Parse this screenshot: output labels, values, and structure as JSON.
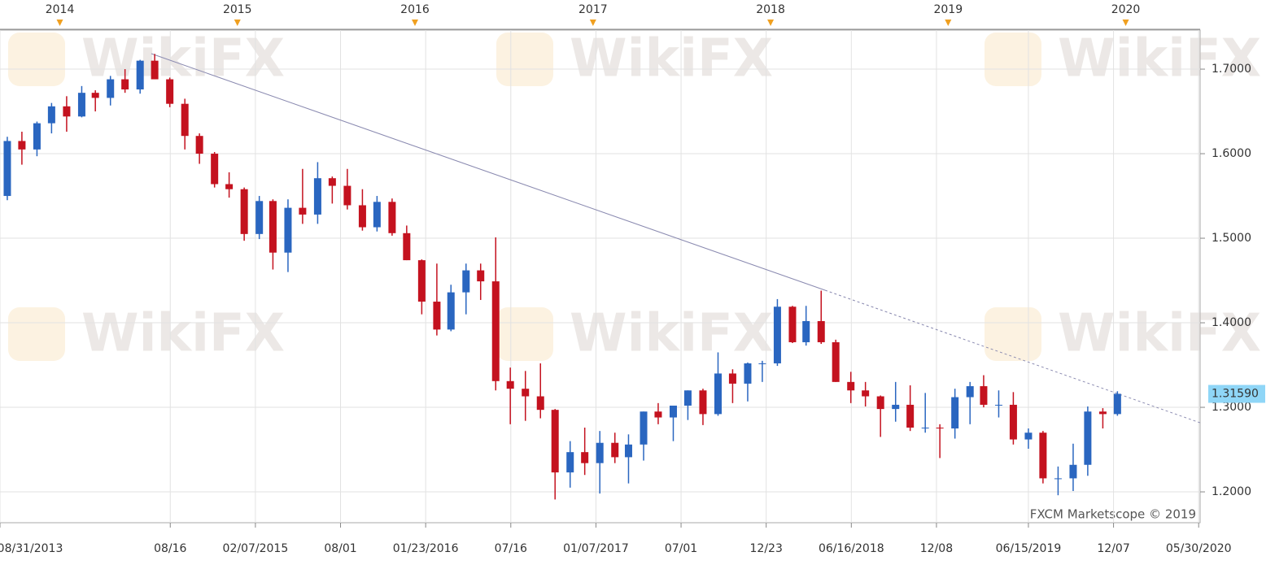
{
  "chart_data": {
    "type": "candlestick",
    "x": [
      "2013-09",
      "2013-10",
      "2013-11",
      "2013-12",
      "2014-01",
      "2014-02",
      "2014-03",
      "2014-04",
      "2014-05",
      "2014-06",
      "2014-07",
      "2014-08",
      "2014-09",
      "2014-10",
      "2014-11",
      "2014-12",
      "2015-01",
      "2015-02",
      "2015-03",
      "2015-04",
      "2015-05",
      "2015-06",
      "2015-07",
      "2015-08",
      "2015-09",
      "2015-10",
      "2015-11",
      "2015-12",
      "2016-01",
      "2016-02",
      "2016-03",
      "2016-04",
      "2016-05",
      "2016-06",
      "2016-07",
      "2016-08",
      "2016-09",
      "2016-10",
      "2016-11",
      "2016-12",
      "2017-01",
      "2017-02",
      "2017-03",
      "2017-04",
      "2017-05",
      "2017-06",
      "2017-07",
      "2017-08",
      "2017-09",
      "2017-10",
      "2017-11",
      "2017-12",
      "2018-01",
      "2018-02",
      "2018-03",
      "2018-04",
      "2018-05",
      "2018-06",
      "2018-07",
      "2018-08",
      "2018-09",
      "2018-10",
      "2018-11",
      "2018-12",
      "2019-01",
      "2019-02",
      "2019-03",
      "2019-04",
      "2019-05",
      "2019-06",
      "2019-07",
      "2019-08",
      "2019-09",
      "2019-10",
      "2019-11",
      "2019-12"
    ],
    "open": [
      1.55,
      1.615,
      1.605,
      1.636,
      1.656,
      1.644,
      1.672,
      1.666,
      1.688,
      1.676,
      1.71,
      1.688,
      1.659,
      1.621,
      1.6,
      1.564,
      1.558,
      1.505,
      1.544,
      1.483,
      1.536,
      1.528,
      1.571,
      1.562,
      1.539,
      1.513,
      1.543,
      1.506,
      1.474,
      1.425,
      1.392,
      1.436,
      1.462,
      1.449,
      1.331,
      1.322,
      1.313,
      1.297,
      1.223,
      1.247,
      1.234,
      1.258,
      1.241,
      1.256,
      1.295,
      1.288,
      1.302,
      1.32,
      1.292,
      1.34,
      1.328,
      1.352,
      1.352,
      1.419,
      1.377,
      1.402,
      1.377,
      1.33,
      1.32,
      1.313,
      1.298,
      1.303,
      1.276,
      1.276,
      1.275,
      1.312,
      1.325,
      1.303,
      1.303,
      1.262,
      1.27,
      1.216,
      1.216,
      1.232,
      1.295,
      1.292
    ],
    "high": [
      1.62,
      1.626,
      1.638,
      1.66,
      1.668,
      1.68,
      1.675,
      1.692,
      1.7,
      1.711,
      1.718,
      1.69,
      1.665,
      1.624,
      1.602,
      1.578,
      1.56,
      1.55,
      1.546,
      1.546,
      1.582,
      1.59,
      1.573,
      1.582,
      1.558,
      1.55,
      1.547,
      1.515,
      1.475,
      1.47,
      1.445,
      1.47,
      1.47,
      1.501,
      1.347,
      1.343,
      1.352,
      1.298,
      1.26,
      1.276,
      1.272,
      1.27,
      1.268,
      1.295,
      1.305,
      1.301,
      1.32,
      1.322,
      1.365,
      1.345,
      1.353,
      1.355,
      1.428,
      1.42,
      1.42,
      1.438,
      1.38,
      1.342,
      1.33,
      1.314,
      1.33,
      1.326,
      1.317,
      1.28,
      1.322,
      1.33,
      1.338,
      1.32,
      1.318,
      1.275,
      1.272,
      1.23,
      1.257,
      1.301,
      1.299,
      1.319
    ],
    "low": [
      1.545,
      1.587,
      1.597,
      1.624,
      1.626,
      1.643,
      1.65,
      1.657,
      1.672,
      1.671,
      1.688,
      1.655,
      1.605,
      1.588,
      1.56,
      1.548,
      1.497,
      1.499,
      1.463,
      1.46,
      1.517,
      1.517,
      1.541,
      1.534,
      1.509,
      1.508,
      1.503,
      1.474,
      1.41,
      1.385,
      1.39,
      1.41,
      1.427,
      1.32,
      1.28,
      1.284,
      1.287,
      1.191,
      1.205,
      1.22,
      1.198,
      1.234,
      1.21,
      1.237,
      1.28,
      1.26,
      1.285,
      1.279,
      1.29,
      1.305,
      1.307,
      1.33,
      1.349,
      1.376,
      1.373,
      1.375,
      1.33,
      1.305,
      1.301,
      1.265,
      1.283,
      1.272,
      1.27,
      1.24,
      1.263,
      1.28,
      1.3,
      1.288,
      1.256,
      1.251,
      1.21,
      1.196,
      1.201,
      1.219,
      1.275,
      1.29
    ],
    "close": [
      1.615,
      1.605,
      1.636,
      1.656,
      1.644,
      1.672,
      1.666,
      1.688,
      1.676,
      1.71,
      1.688,
      1.659,
      1.621,
      1.6,
      1.564,
      1.558,
      1.505,
      1.544,
      1.483,
      1.536,
      1.528,
      1.571,
      1.562,
      1.539,
      1.513,
      1.543,
      1.506,
      1.474,
      1.425,
      1.392,
      1.436,
      1.462,
      1.449,
      1.331,
      1.322,
      1.313,
      1.297,
      1.223,
      1.247,
      1.234,
      1.258,
      1.241,
      1.256,
      1.295,
      1.288,
      1.302,
      1.32,
      1.292,
      1.34,
      1.328,
      1.352,
      1.352,
      1.419,
      1.377,
      1.402,
      1.377,
      1.33,
      1.32,
      1.313,
      1.298,
      1.303,
      1.276,
      1.276,
      1.275,
      1.312,
      1.325,
      1.303,
      1.303,
      1.262,
      1.27,
      1.216,
      1.216,
      1.232,
      1.295,
      1.292,
      1.316
    ],
    "up_color": "#2a66c0",
    "down_color": "#c4121f",
    "ylim": [
      1.1635,
      1.7462
    ],
    "yticks": [
      {
        "value": 1.2,
        "label": "1.2000"
      },
      {
        "value": 1.3,
        "label": "1.3000"
      },
      {
        "value": 1.4,
        "label": "1.4000"
      },
      {
        "value": 1.5,
        "label": "1.5000"
      },
      {
        "value": 1.6,
        "label": "1.6000"
      },
      {
        "value": 1.7,
        "label": "1.7000"
      }
    ],
    "xlim": [
      "2013-08-31",
      "2020-06-02"
    ],
    "xticks": [
      {
        "value": "2013-08-31",
        "label": "08/31/2013"
      },
      {
        "value": "2014-08-16",
        "label": "08/16"
      },
      {
        "value": "2015-02-07",
        "label": "02/07/2015"
      },
      {
        "value": "2015-08-01",
        "label": "08/01"
      },
      {
        "value": "2016-01-23",
        "label": "01/23/2016"
      },
      {
        "value": "2016-07-16",
        "label": "07/16"
      },
      {
        "value": "2017-01-07",
        "label": "01/07/2017"
      },
      {
        "value": "2017-07-01",
        "label": "07/01"
      },
      {
        "value": "2017-12-23",
        "label": "12/23"
      },
      {
        "value": "2018-06-16",
        "label": "06/16/2018"
      },
      {
        "value": "2018-12-08",
        "label": "12/08"
      },
      {
        "value": "2019-06-15",
        "label": "06/15/2019"
      },
      {
        "value": "2019-12-07",
        "label": "12/07"
      },
      {
        "value": "2020-05-30",
        "label": "05/30/2020"
      }
    ],
    "top_ticks": [
      {
        "value": "2014-01-01",
        "label": "2014"
      },
      {
        "value": "2015-01-01",
        "label": "2015"
      },
      {
        "value": "2016-01-01",
        "label": "2016"
      },
      {
        "value": "2017-01-01",
        "label": "2017"
      },
      {
        "value": "2018-01-01",
        "label": "2018"
      },
      {
        "value": "2019-01-01",
        "label": "2019"
      },
      {
        "value": "2020-01-01",
        "label": "2020"
      }
    ],
    "last_price": {
      "value": 1.3159,
      "label": "1.31590"
    },
    "trendline": {
      "x": [
        "2014-07-08",
        "2018-04-23",
        "2020-06-02"
      ],
      "y": [
        1.7183,
        1.4385,
        1.2817
      ]
    },
    "grid": true,
    "watermark": "WikiFX",
    "credit": "FXCM Marketscope © 2019"
  }
}
